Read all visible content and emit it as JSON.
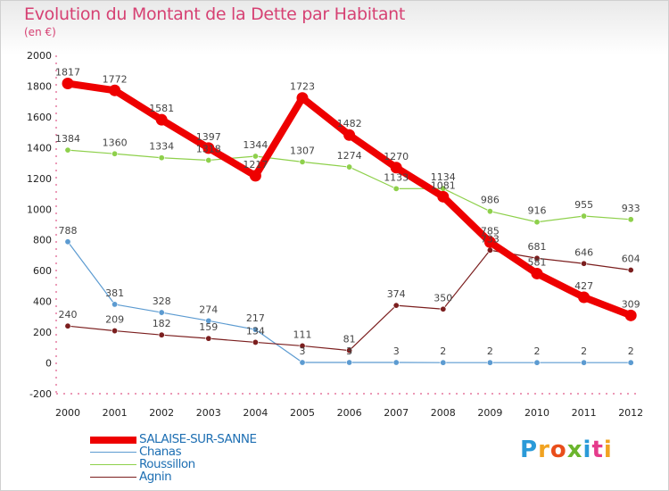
{
  "header": {
    "title": "Evolution du Montant de la Dette par Habitant",
    "unit": "(en €)"
  },
  "logo": {
    "text": "Proxiti",
    "colors": [
      "#2a9ad8",
      "#f1a321",
      "#e94e1b",
      "#6bb52d",
      "#2a9ad8",
      "#e53b8c",
      "#f1a321"
    ]
  },
  "chart_data": {
    "type": "line",
    "title": "Evolution du Montant de la Dette par Habitant",
    "ylabel": "(en €)",
    "xlabel": "",
    "x": [
      2000,
      2001,
      2002,
      2003,
      2004,
      2005,
      2006,
      2007,
      2008,
      2009,
      2010,
      2011,
      2012
    ],
    "ylim": [
      -200,
      2000
    ],
    "yticks": [
      -200,
      0,
      200,
      400,
      600,
      800,
      1000,
      1200,
      1400,
      1600,
      1800,
      2000
    ],
    "grid": false,
    "legend_position": "bottom-left",
    "series": [
      {
        "name": "SALAISE-SUR-SANNE",
        "color": "#ee0000",
        "values": [
          1817,
          1772,
          1581,
          1397,
          1217,
          1723,
          1482,
          1270,
          1081,
          785,
          581,
          427,
          309
        ]
      },
      {
        "name": "Chanas",
        "color": "#5c9bd1",
        "values": [
          788,
          381,
          328,
          274,
          217,
          3,
          3,
          3,
          2,
          2,
          2,
          2,
          2
        ]
      },
      {
        "name": "Roussillon",
        "color": "#8ed04b",
        "values": [
          1384,
          1360,
          1334,
          1318,
          1344,
          1307,
          1274,
          1133,
          1134,
          986,
          916,
          955,
          933
        ]
      },
      {
        "name": "Agnin",
        "color": "#7b1e1e",
        "values": [
          240,
          209,
          182,
          159,
          134,
          111,
          81,
          374,
          350,
          733,
          681,
          646,
          604
        ]
      }
    ]
  }
}
